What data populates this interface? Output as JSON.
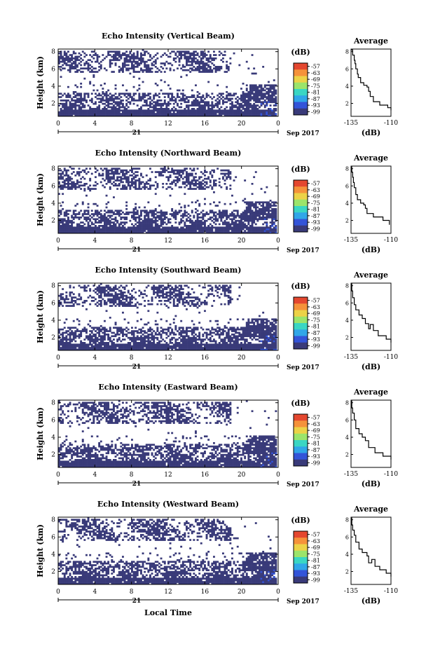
{
  "shared": {
    "x_ticks": [
      "0",
      "4",
      "8",
      "12",
      "16",
      "20",
      "0"
    ],
    "x_tick_values": [
      0,
      4,
      8,
      12,
      16,
      20,
      24
    ],
    "date_day": "21",
    "date_month_year": "Sep 2017",
    "xlabel": "Local Time",
    "ylabel": "Height (km)",
    "y_ticks": [
      "2",
      "4",
      "6",
      "8"
    ],
    "colorbar_unit": "(dB)",
    "colorbar_ticks": [
      "-57",
      "-63",
      "-69",
      "-75",
      "-81",
      "-87",
      "-93",
      "-99"
    ],
    "colorbar_colors": [
      "#393a79",
      "#3354d8",
      "#30a6e8",
      "#3ad6c3",
      "#9be46b",
      "#ecd247",
      "#f5923a",
      "#e4472f"
    ],
    "profile_title": "Average",
    "profile_unit": "(dB)"
  },
  "chart_data": [
    {
      "type": "heatmap",
      "title": "Echo Intensity (Vertical Beam)",
      "xlim": [
        0,
        24
      ],
      "ylim": [
        0.5,
        8.3
      ],
      "profile": {
        "xlim": [
          -135,
          -110
        ],
        "x_ticks": [
          "-135",
          "-110"
        ],
        "points": [
          [
            -135,
            8.2
          ],
          [
            -134,
            7.6
          ],
          [
            -133,
            7.0
          ],
          [
            -132.5,
            6.6
          ],
          [
            -132,
            6.0
          ],
          [
            -131,
            5.4
          ],
          [
            -130.5,
            5.0
          ],
          [
            -129,
            4.4
          ],
          [
            -127,
            4.1
          ],
          [
            -125,
            3.9
          ],
          [
            -124,
            3.4
          ],
          [
            -123,
            2.8
          ],
          [
            -121,
            2.2
          ],
          [
            -117,
            1.8
          ],
          [
            -112,
            1.5
          ],
          [
            -110,
            1.2
          ]
        ]
      }
    },
    {
      "type": "heatmap",
      "title": "Echo Intensity (Northward Beam)",
      "xlim": [
        0,
        24
      ],
      "ylim": [
        0.5,
        8.3
      ],
      "profile": {
        "xlim": [
          -135,
          -110
        ],
        "x_ticks": [
          "-135",
          "-110"
        ],
        "points": [
          [
            -135,
            8.2
          ],
          [
            -134.5,
            7.6
          ],
          [
            -134,
            7.0
          ],
          [
            -133.5,
            6.4
          ],
          [
            -133,
            5.8
          ],
          [
            -132,
            5.0
          ],
          [
            -131,
            4.4
          ],
          [
            -129,
            4.0
          ],
          [
            -127,
            3.8
          ],
          [
            -126,
            3.4
          ],
          [
            -125,
            2.8
          ],
          [
            -121,
            2.4
          ],
          [
            -115,
            2.0
          ],
          [
            -111,
            1.5
          ]
        ]
      }
    },
    {
      "type": "heatmap",
      "title": "Echo Intensity (Southward Beam)",
      "xlim": [
        0,
        24
      ],
      "ylim": [
        0.5,
        8.3
      ],
      "profile": {
        "xlim": [
          -135,
          -110
        ],
        "x_ticks": [
          "-135",
          "-110"
        ],
        "points": [
          [
            -135,
            8.2
          ],
          [
            -134.5,
            7.4
          ],
          [
            -134,
            6.6
          ],
          [
            -133,
            5.8
          ],
          [
            -132,
            5.2
          ],
          [
            -130,
            4.6
          ],
          [
            -128,
            4.2
          ],
          [
            -126,
            3.6
          ],
          [
            -124,
            3.0
          ],
          [
            -123,
            3.5
          ],
          [
            -121,
            2.8
          ],
          [
            -118,
            2.2
          ],
          [
            -113,
            1.8
          ],
          [
            -110,
            1.4
          ]
        ]
      }
    },
    {
      "type": "heatmap",
      "title": "Echo Intensity (Eastward Beam)",
      "xlim": [
        0,
        24
      ],
      "ylim": [
        0.5,
        8.3
      ],
      "profile": {
        "xlim": [
          -135,
          -110
        ],
        "x_ticks": [
          "-135",
          "-110"
        ],
        "points": [
          [
            -135,
            8.2
          ],
          [
            -134.5,
            7.4
          ],
          [
            -134,
            6.8
          ],
          [
            -133,
            6.0
          ],
          [
            -132,
            5.0
          ],
          [
            -130,
            4.4
          ],
          [
            -128,
            4.0
          ],
          [
            -126,
            3.6
          ],
          [
            -124,
            2.8
          ],
          [
            -120,
            2.2
          ],
          [
            -115,
            1.8
          ],
          [
            -110,
            1.4
          ]
        ]
      }
    },
    {
      "type": "heatmap",
      "title": "Echo Intensity (Westward Beam)",
      "xlim": [
        0,
        24
      ],
      "ylim": [
        0.5,
        8.3
      ],
      "profile": {
        "xlim": [
          -135,
          -110
        ],
        "x_ticks": [
          "-135",
          "-110"
        ],
        "points": [
          [
            -135,
            8.2
          ],
          [
            -134.5,
            7.4
          ],
          [
            -134,
            6.8
          ],
          [
            -133,
            6.2
          ],
          [
            -132,
            5.4
          ],
          [
            -130,
            4.6
          ],
          [
            -128,
            4.2
          ],
          [
            -125,
            3.8
          ],
          [
            -124,
            3.0
          ],
          [
            -122,
            3.4
          ],
          [
            -120,
            2.6
          ],
          [
            -117,
            2.2
          ],
          [
            -113,
            1.8
          ],
          [
            -110,
            1.4
          ]
        ]
      }
    }
  ]
}
